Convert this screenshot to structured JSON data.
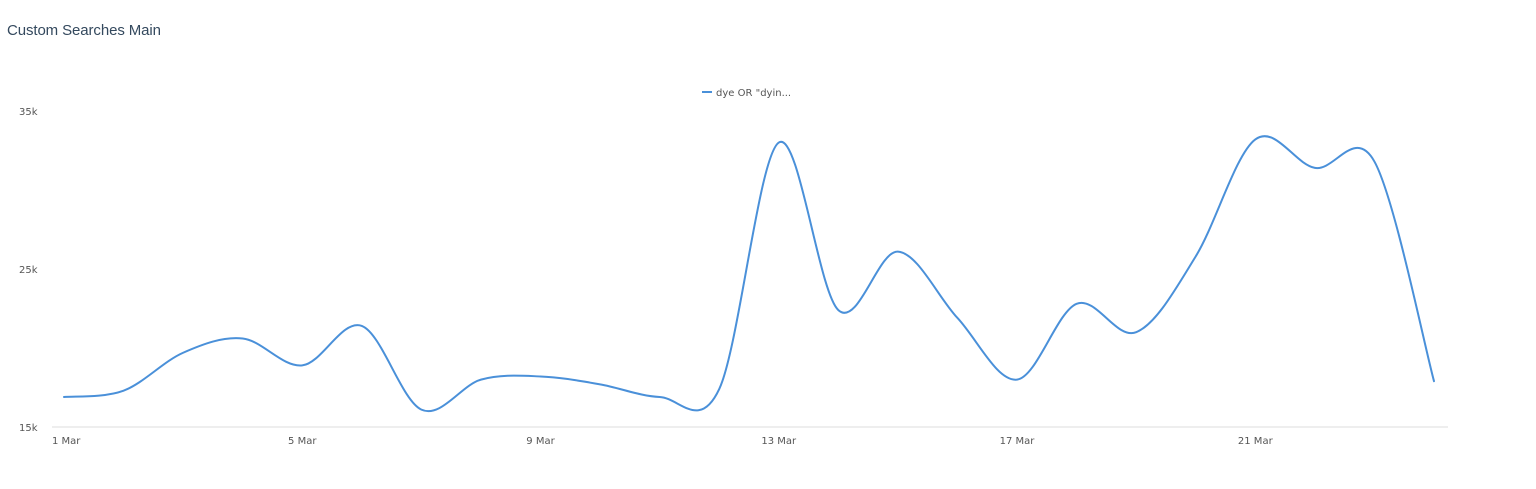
{
  "widget": {
    "title": "Custom Searches Main"
  },
  "chart_data": {
    "type": "line",
    "title": "",
    "xlabel": "",
    "ylabel": "",
    "x": [
      "1 Mar",
      "2 Mar",
      "3 Mar",
      "4 Mar",
      "5 Mar",
      "6 Mar",
      "7 Mar",
      "8 Mar",
      "9 Mar",
      "10 Mar",
      "11 Mar",
      "12 Mar",
      "13 Mar",
      "14 Mar",
      "15 Mar",
      "16 Mar",
      "17 Mar",
      "18 Mar",
      "19 Mar",
      "20 Mar",
      "21 Mar",
      "22 Mar",
      "23 Mar",
      "24 Mar"
    ],
    "x_ticks": [
      "1 Mar",
      "5 Mar",
      "9 Mar",
      "13 Mar",
      "17 Mar",
      "21 Mar"
    ],
    "y_ticks": [
      "15k",
      "25k",
      "35k"
    ],
    "ylim": [
      15000,
      35000
    ],
    "grid": false,
    "legend_position": "top-center",
    "series": [
      {
        "name": "dye OR \"dyin...",
        "color": "#4a90d9",
        "values": [
          16900,
          17300,
          19700,
          20600,
          18900,
          21400,
          16100,
          18000,
          18200,
          17700,
          16900,
          17400,
          33000,
          22400,
          26100,
          21900,
          18000,
          22800,
          21000,
          25800,
          33200,
          31400,
          31800,
          17900
        ]
      }
    ]
  }
}
